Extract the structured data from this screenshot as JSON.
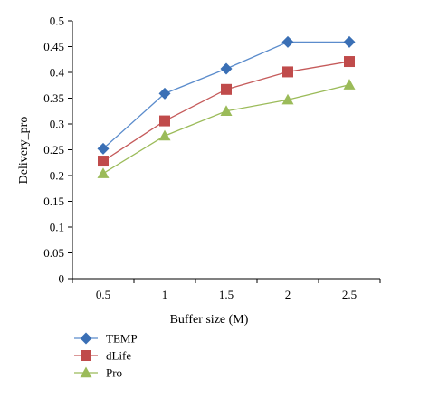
{
  "chart_data": {
    "type": "line",
    "x": [
      "0.5",
      "1",
      "1.5",
      "2",
      "2.5"
    ],
    "xlabel": "Buffer size (M)",
    "ylabel": "Delivery_pro",
    "ylim": [
      0,
      0.5
    ],
    "yticks": [
      "0",
      "0.05",
      "0.1",
      "0.15",
      "0.2",
      "0.25",
      "0.3",
      "0.35",
      "0.4",
      "0.45",
      "0.5"
    ],
    "grid": false,
    "legend_position": "bottom-left",
    "series": [
      {
        "name": "TEMP",
        "values": [
          0.252,
          0.359,
          0.407,
          0.459,
          0.459
        ],
        "color": "#3a6fb5",
        "line_color": "#5b8ccc",
        "marker": "diamond"
      },
      {
        "name": "dLife",
        "values": [
          0.228,
          0.306,
          0.367,
          0.401,
          0.421
        ],
        "color": "#c04b4b",
        "line_color": "#c55a5a",
        "marker": "square"
      },
      {
        "name": "Pro",
        "values": [
          0.204,
          0.277,
          0.325,
          0.347,
          0.376
        ],
        "color": "#9bbb59",
        "line_color": "#9bbb59",
        "marker": "triangle"
      }
    ]
  }
}
